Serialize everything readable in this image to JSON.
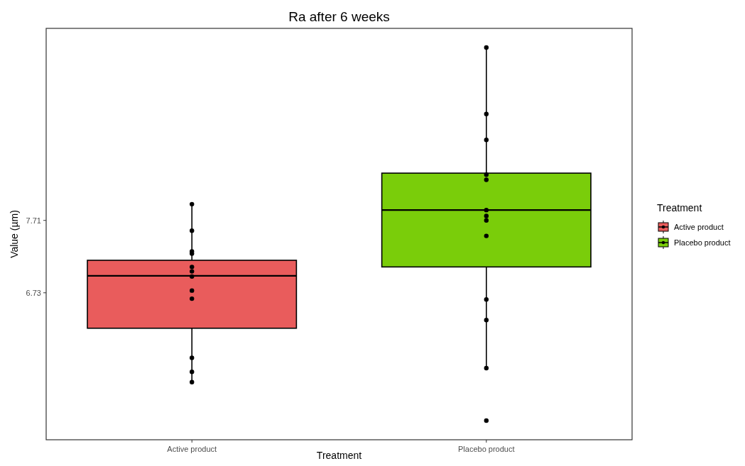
{
  "chart_data": {
    "type": "box",
    "title": "Ra after 6 weeks",
    "xlabel": "Treatment",
    "ylabel": "Value (µm)",
    "legend_title": "Treatment",
    "categories": [
      "Active product",
      "Placebo product"
    ],
    "series": [
      {
        "type": "box",
        "name": "Active product",
        "color": "#e95c5c",
        "boxes": [
          {
            "low": 5.52,
            "q1": 6.25,
            "median": 6.96,
            "q3": 7.17,
            "high": 7.93
          },
          null
        ]
      },
      {
        "type": "box",
        "name": "Placebo product",
        "color": "#7acd0a",
        "boxes": [
          null,
          {
            "low": 5.71,
            "q1": 7.08,
            "median": 7.85,
            "q3": 8.35,
            "high": 10.05,
            "outliers": [
              5.0
            ]
          }
        ]
      },
      {
        "type": "scatter",
        "color": "#000000",
        "x": [
          "Active product",
          "Active product",
          "Active product",
          "Active product",
          "Active product",
          "Active product",
          "Active product",
          "Active product",
          "Active product",
          "Active product",
          "Active product",
          "Active product",
          "Placebo product",
          "Placebo product",
          "Placebo product",
          "Placebo product",
          "Placebo product",
          "Placebo product",
          "Placebo product",
          "Placebo product",
          "Placebo product",
          "Placebo product",
          "Placebo product",
          "Placebo product"
        ],
        "values": [
          7.93,
          7.57,
          7.29,
          7.26,
          7.08,
          7.02,
          6.95,
          6.76,
          6.65,
          5.85,
          5.66,
          5.52,
          10.05,
          9.15,
          8.8,
          8.33,
          8.26,
          7.85,
          7.77,
          7.71,
          7.5,
          6.64,
          6.36,
          5.71
        ]
      }
    ],
    "ylim": [
      4.74,
      10.31
    ],
    "yticks": [
      6.73,
      7.71
    ],
    "grid": false,
    "legend": "right",
    "marker": "circle"
  }
}
